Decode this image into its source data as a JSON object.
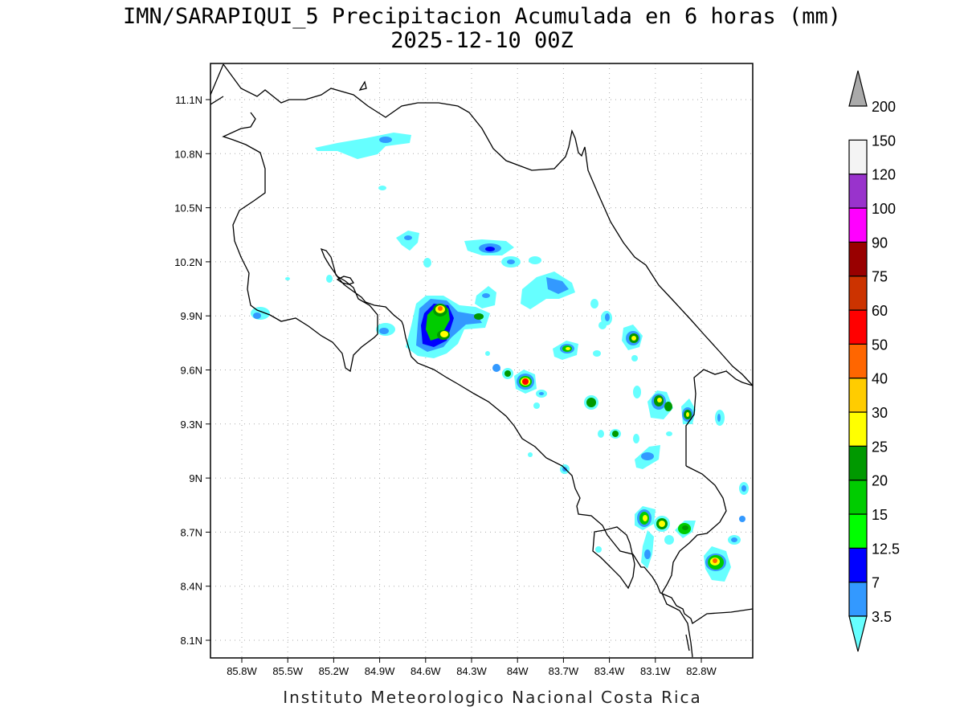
{
  "title": {
    "line1": "IMN/SARAPIQUI_5 Precipitacion Acumulada en 6 horas (mm)",
    "line2": "2025-12-10 00Z"
  },
  "footer": "Instituto Meteorologico Nacional Costa Rica",
  "axes": {
    "lon_ticks": [
      "85.8W",
      "85.5W",
      "85.2W",
      "84.9W",
      "84.6W",
      "84.3W",
      "84W",
      "83.7W",
      "83.4W",
      "83.1W",
      "82.8W"
    ],
    "lat_ticks": [
      "11.1N",
      "10.8N",
      "10.5N",
      "10.2N",
      "9.9N",
      "9.6N",
      "9.3N",
      "9N",
      "8.7N",
      "8.4N",
      "8.1N"
    ],
    "grid": true
  },
  "colorbar": {
    "levels": [
      "3.5",
      "7",
      "12.5",
      "15",
      "20",
      "25",
      "30",
      "40",
      "50",
      "60",
      "75",
      "90",
      "100",
      "120",
      "150",
      "200"
    ],
    "colors": [
      "#66ffff",
      "#3399ff",
      "#0000ff",
      "#00ff00",
      "#00cc00",
      "#009900",
      "#ffff00",
      "#ffcc00",
      "#ff6600",
      "#ff0000",
      "#cc3300",
      "#990000",
      "#ff00ff",
      "#9933cc",
      "#f4f4f4",
      "#aaaaaa"
    ]
  }
}
